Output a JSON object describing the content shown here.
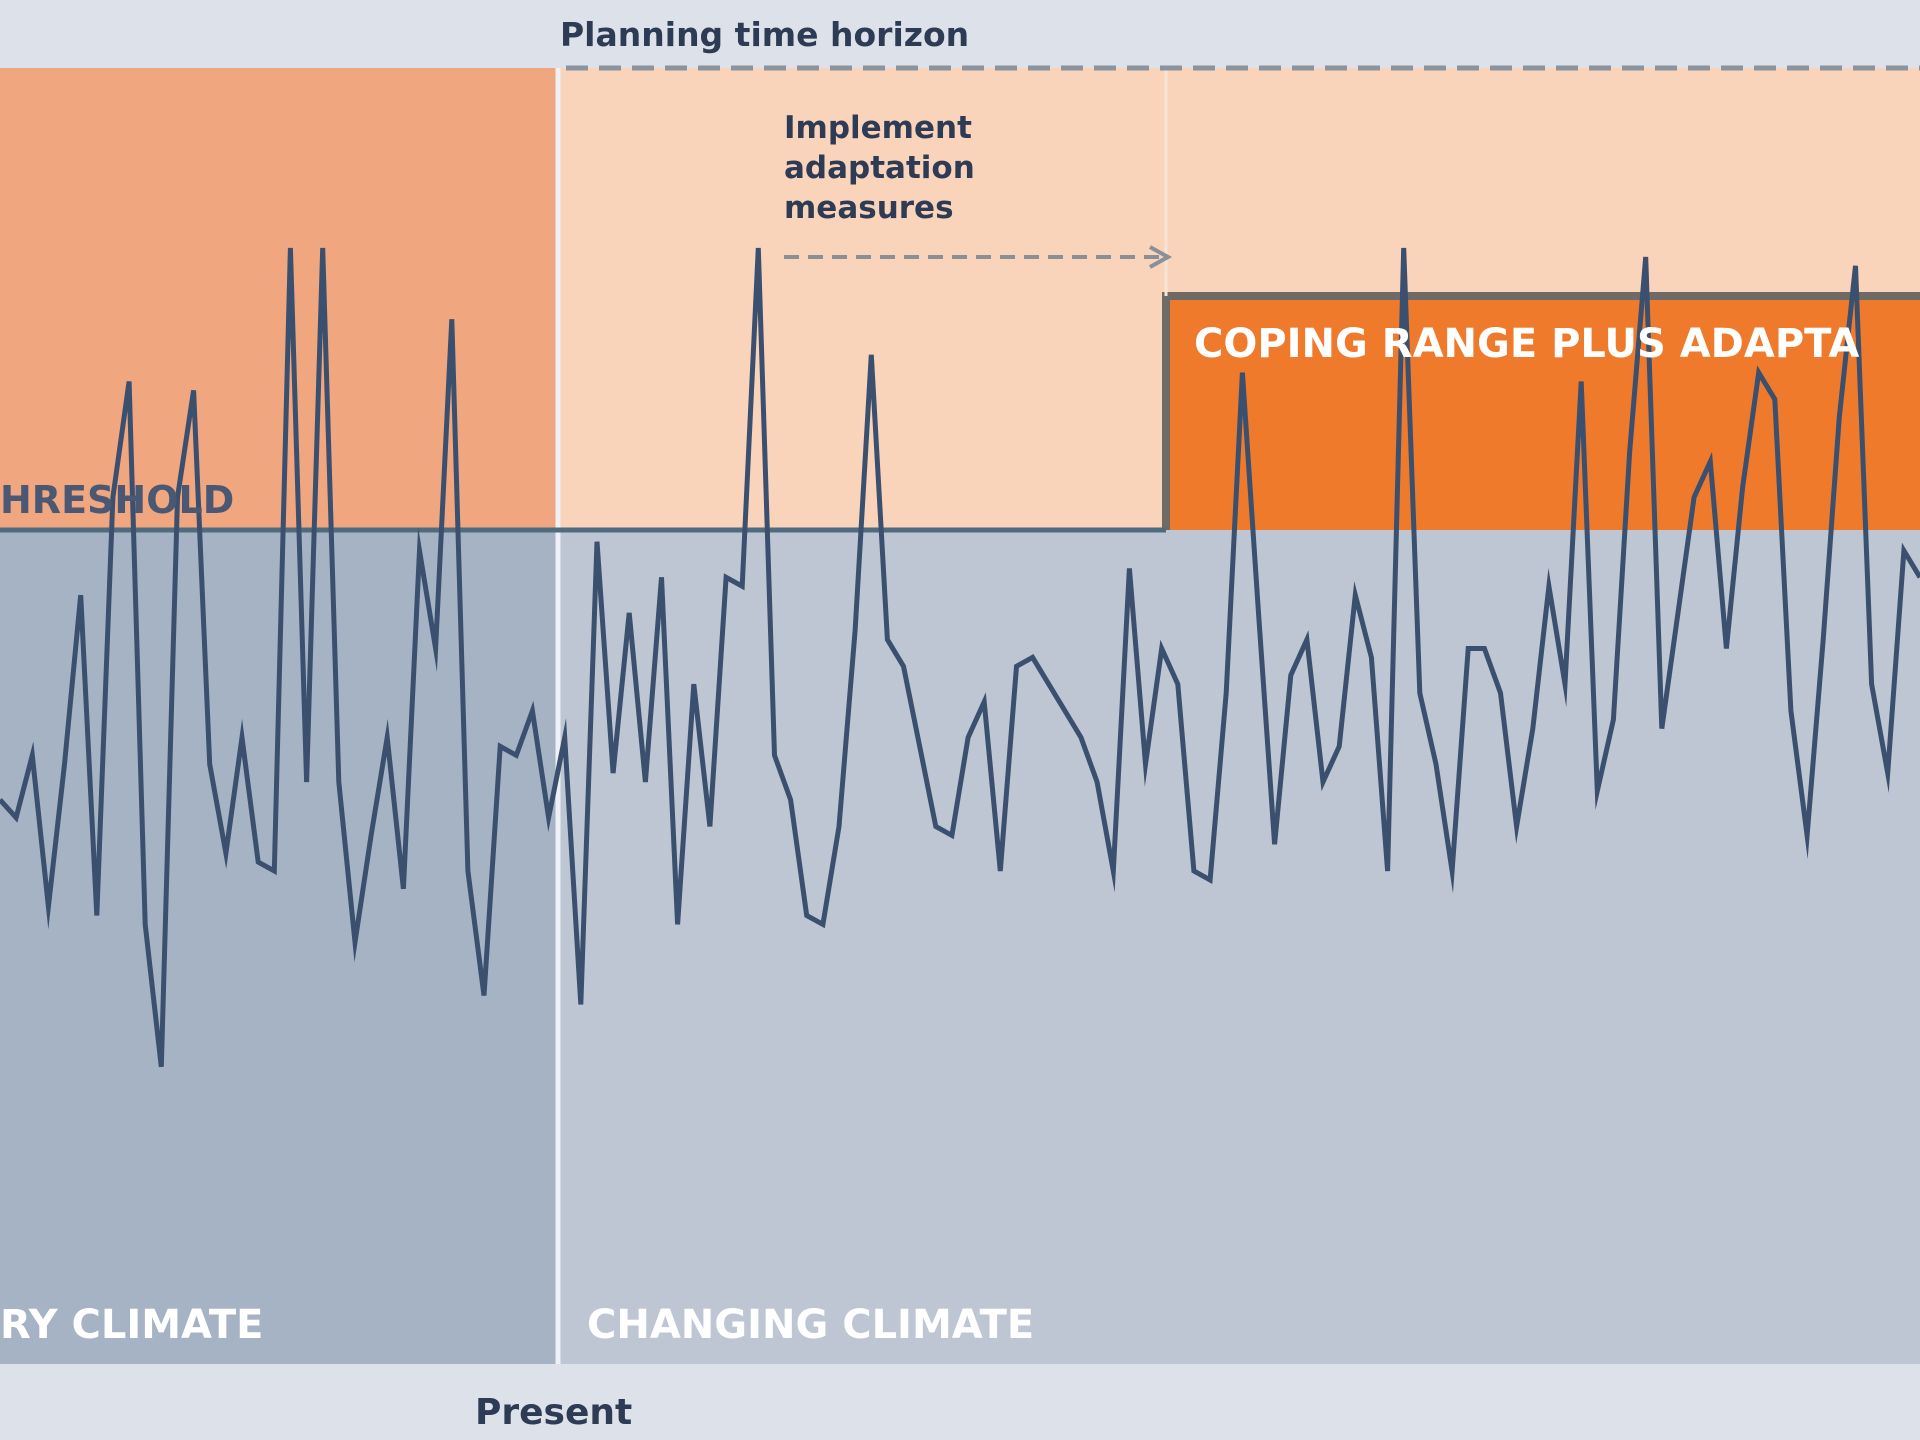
{
  "diagram": {
    "labels": {
      "planning_horizon": "Planning time horizon",
      "implement_line1": "Implement",
      "implement_line2": "adaptation",
      "implement_line3": "measures",
      "threshold": "HRESHOLD",
      "coping_adaptation": "COPING RANGE PLUS ADAPTA",
      "stationary_climate": "RY CLIMATE",
      "changing_climate": "CHANGING CLIMATE",
      "present": "Present"
    },
    "colors": {
      "background": "#dde2ea",
      "coping_range_past": "#f0a67e",
      "coping_range_future": "#fad3bb",
      "coping_plus_adaptation": "#f07a2c",
      "below_threshold_past": "#a6b3c4",
      "below_threshold_future": "#bfc6d3",
      "series_line": "#3b506e",
      "threshold_line": "#4f6b80",
      "horizon_line": "#8a939e"
    },
    "series_description_note": ""
  },
  "chart_data": {
    "type": "line",
    "x": [
      0,
      1,
      2,
      3,
      4,
      5,
      6,
      7,
      8,
      9,
      10,
      11,
      12,
      13,
      14,
      15,
      16,
      17,
      18,
      19,
      20,
      21,
      22,
      23,
      24,
      25,
      26,
      27,
      28,
      29,
      30,
      31,
      32,
      33,
      34,
      35,
      36,
      37,
      38,
      39,
      40,
      41,
      42,
      43,
      44,
      45,
      46,
      47,
      48,
      49,
      50,
      51,
      52,
      53,
      54,
      55,
      56,
      57,
      58,
      59,
      60,
      61,
      62,
      63,
      64,
      65,
      66,
      67,
      68,
      69,
      70,
      71,
      72,
      73,
      74,
      75,
      76,
      77,
      78,
      79,
      80,
      81,
      82,
      83,
      84,
      85,
      86,
      87,
      88,
      89,
      90,
      91,
      92,
      93,
      94,
      95,
      96,
      97,
      98,
      99,
      100,
      101,
      102,
      103,
      104,
      105,
      106,
      107,
      108,
      109,
      110,
      111,
      112,
      113,
      114,
      115,
      116,
      117,
      118,
      119
    ],
    "values": [
      0.38,
      0.36,
      0.43,
      0.26,
      0.42,
      0.61,
      0.25,
      0.72,
      0.85,
      0.24,
      0.08,
      0.72,
      0.84,
      0.42,
      0.32,
      0.45,
      0.31,
      0.3,
      1.0,
      0.4,
      1.0,
      0.4,
      0.22,
      0.34,
      0.45,
      0.28,
      0.66,
      0.55,
      0.92,
      0.3,
      0.16,
      0.44,
      0.43,
      0.48,
      0.36,
      0.45,
      0.15,
      0.67,
      0.41,
      0.59,
      0.4,
      0.63,
      0.24,
      0.51,
      0.35,
      0.63,
      0.62,
      1.0,
      0.43,
      0.38,
      0.25,
      0.24,
      0.35,
      0.57,
      0.88,
      0.56,
      0.53,
      0.44,
      0.35,
      0.34,
      0.45,
      0.49,
      0.3,
      0.53,
      0.54,
      0.51,
      0.48,
      0.45,
      0.4,
      0.3,
      0.64,
      0.42,
      0.55,
      0.51,
      0.3,
      0.29,
      0.5,
      0.86,
      0.59,
      0.33,
      0.52,
      0.56,
      0.4,
      0.44,
      0.61,
      0.54,
      0.3,
      1.0,
      0.5,
      0.42,
      0.3,
      0.55,
      0.55,
      0.5,
      0.35,
      0.46,
      0.62,
      0.51,
      0.85,
      0.39,
      0.47,
      0.77,
      0.99,
      0.46,
      0.59,
      0.72,
      0.76,
      0.55,
      0.73,
      0.86,
      0.83,
      0.48,
      0.34,
      0.56,
      0.81,
      0.98,
      0.51,
      0.41,
      0.66,
      0.63
    ],
    "xlabel": "",
    "ylabel": "",
    "title": "",
    "grid": false,
    "legend": "none"
  }
}
